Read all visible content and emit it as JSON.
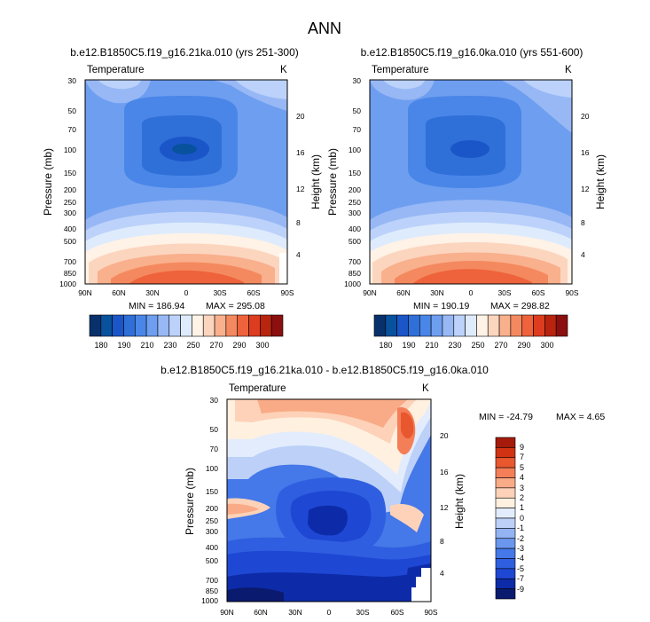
{
  "title": "ANN",
  "color_bar_colors": [
    "#08306b",
    "#08519c",
    "#1a56c8",
    "#2f6fd8",
    "#4a86e8",
    "#6e9ef0",
    "#97b8f5",
    "#bcd2fa",
    "#deebfd",
    "#fff2e6",
    "#fcd5bf",
    "#f9b08d",
    "#f4895f",
    "#ee633b",
    "#dd3d1e",
    "#b8240d",
    "#8b0f0f"
  ],
  "diff_colors": [
    "#0a1a6e",
    "#0d2ba8",
    "#1e47d4",
    "#2f5fe0",
    "#4578e8",
    "#6a96ee",
    "#93b3f3",
    "#bcd0f8",
    "#e2ecfc",
    "#fff0e0",
    "#fdd2b8",
    "#f9aa86",
    "#f47e58",
    "#e9572f",
    "#d13312",
    "#a51a0a"
  ],
  "chart_data": [
    {
      "type": "heatmap",
      "title": "b.e12.B1850C5.f19_g16.21ka.010 (yrs 251-300)",
      "left_label": "Temperature",
      "right_label": "K",
      "ylabel": "Pressure (mb)",
      "ylabel_right": "Height (km)",
      "x_ticks": [
        "90N",
        "60N",
        "30N",
        "0",
        "30S",
        "60S",
        "90S"
      ],
      "y_ticks": [
        "30",
        "50",
        "70",
        "100",
        "150",
        "200",
        "250",
        "300",
        "400",
        "500",
        "700",
        "850",
        "1000"
      ],
      "y_ticks_right": [
        "20",
        "16",
        "12",
        "8",
        "4"
      ],
      "min_label": "MIN = 186.94",
      "max_label": "MAX = 295.08",
      "colorbar_labels": [
        "180",
        "190",
        "210",
        "230",
        "250",
        "270",
        "290",
        "300"
      ]
    },
    {
      "type": "heatmap",
      "title": "b.e12.B1850C5.f19_g16.0ka.010 (yrs 551-600)",
      "left_label": "Temperature",
      "right_label": "K",
      "ylabel": "Pressure (mb)",
      "ylabel_right": "Height (km)",
      "x_ticks": [
        "90N",
        "60N",
        "30N",
        "0",
        "30S",
        "60S",
        "90S"
      ],
      "y_ticks": [
        "30",
        "50",
        "70",
        "100",
        "150",
        "200",
        "250",
        "300",
        "400",
        "500",
        "700",
        "850",
        "1000"
      ],
      "y_ticks_right": [
        "20",
        "16",
        "12",
        "8",
        "4"
      ],
      "min_label": "MIN = 190.19",
      "max_label": "MAX = 298.82",
      "colorbar_labels": [
        "180",
        "190",
        "210",
        "230",
        "250",
        "270",
        "290",
        "300"
      ]
    },
    {
      "type": "heatmap",
      "title": "b.e12.B1850C5.f19_g16.21ka.010 - b.e12.B1850C5.f19_g16.0ka.010",
      "left_label": "Temperature",
      "right_label": "K",
      "ylabel": "Pressure (mb)",
      "ylabel_right": "Height (km)",
      "x_ticks": [
        "90N",
        "60N",
        "30N",
        "0",
        "30S",
        "60S",
        "90S"
      ],
      "y_ticks": [
        "30",
        "50",
        "70",
        "100",
        "150",
        "200",
        "250",
        "300",
        "400",
        "500",
        "700",
        "850",
        "1000"
      ],
      "y_ticks_right": [
        "20",
        "16",
        "12",
        "8",
        "4"
      ],
      "min_label": "MIN = -24.79",
      "max_label": "MAX =   4.65",
      "colorbar_labels": [
        "9",
        "7",
        "5",
        "4",
        "3",
        "2",
        "1",
        "0",
        "-1",
        "-2",
        "-3",
        "-4",
        "-5",
        "-7",
        "-9"
      ]
    }
  ]
}
